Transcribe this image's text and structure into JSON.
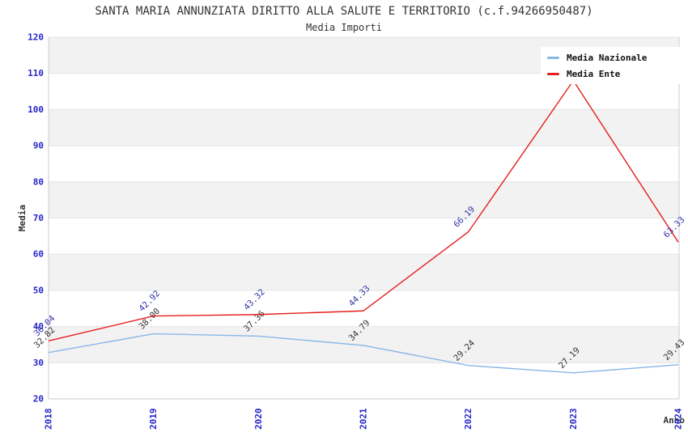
{
  "header": {
    "title": "SANTA MARIA ANNUNZIATA DIRITTO ALLA SALUTE E TERRITORIO (c.f.94266950487)",
    "subtitle": "Media Importi"
  },
  "colors": {
    "tick_label": "#2626c9",
    "band_gray": "#f2f2f2",
    "gridline": "#e4e4e4",
    "axis_line": "#cccccc",
    "title_text": "#333333",
    "legend_text": "#111111",
    "nazionale_line": "#89b7e6",
    "ente_line": "#e61e1e",
    "nazionale_point_label": "#333333",
    "ente_point_label": "#3333a8"
  },
  "chart_data": {
    "type": "line",
    "title": "SANTA MARIA ANNUNZIATA DIRITTO ALLA SALUTE E TERRITORIO (c.f.94266950487)",
    "subtitle": "Media Importi",
    "xlabel": "Anno",
    "ylabel": "Media",
    "x": [
      2018,
      2019,
      2020,
      2021,
      2022,
      2023,
      2024
    ],
    "x_tick_labels": [
      "2018",
      "2019",
      "2020",
      "2021",
      "2022",
      "2023",
      "2024"
    ],
    "ylim": [
      20,
      120
    ],
    "ytick_step": 10,
    "y_tick_labels": [
      "20",
      "30",
      "40",
      "50",
      "60",
      "70",
      "80",
      "90",
      "100",
      "110",
      "120"
    ],
    "grid": "horizontal-bands",
    "legend_position": "top-right",
    "series": [
      {
        "name": "Media Nazionale",
        "color": "#89b7e6",
        "label_color": "#333333",
        "values": [
          32.82,
          38.0,
          37.36,
          34.79,
          29.24,
          27.19,
          29.43
        ],
        "point_labels": [
          "32.82",
          "38.00",
          "37.36",
          "34.79",
          "29.24",
          "27.19",
          "29.43"
        ]
      },
      {
        "name": "Media Ente",
        "color": "#e61e1e",
        "label_color": "#3333a8",
        "values": [
          36.04,
          42.92,
          43.32,
          44.33,
          66.19,
          108.0,
          63.33
        ],
        "point_labels": [
          "36.04",
          "42.92",
          "43.32",
          "44.33",
          "66.19",
          null,
          "63.33"
        ],
        "note_2023": "peak data label hidden behind legend box"
      }
    ]
  }
}
